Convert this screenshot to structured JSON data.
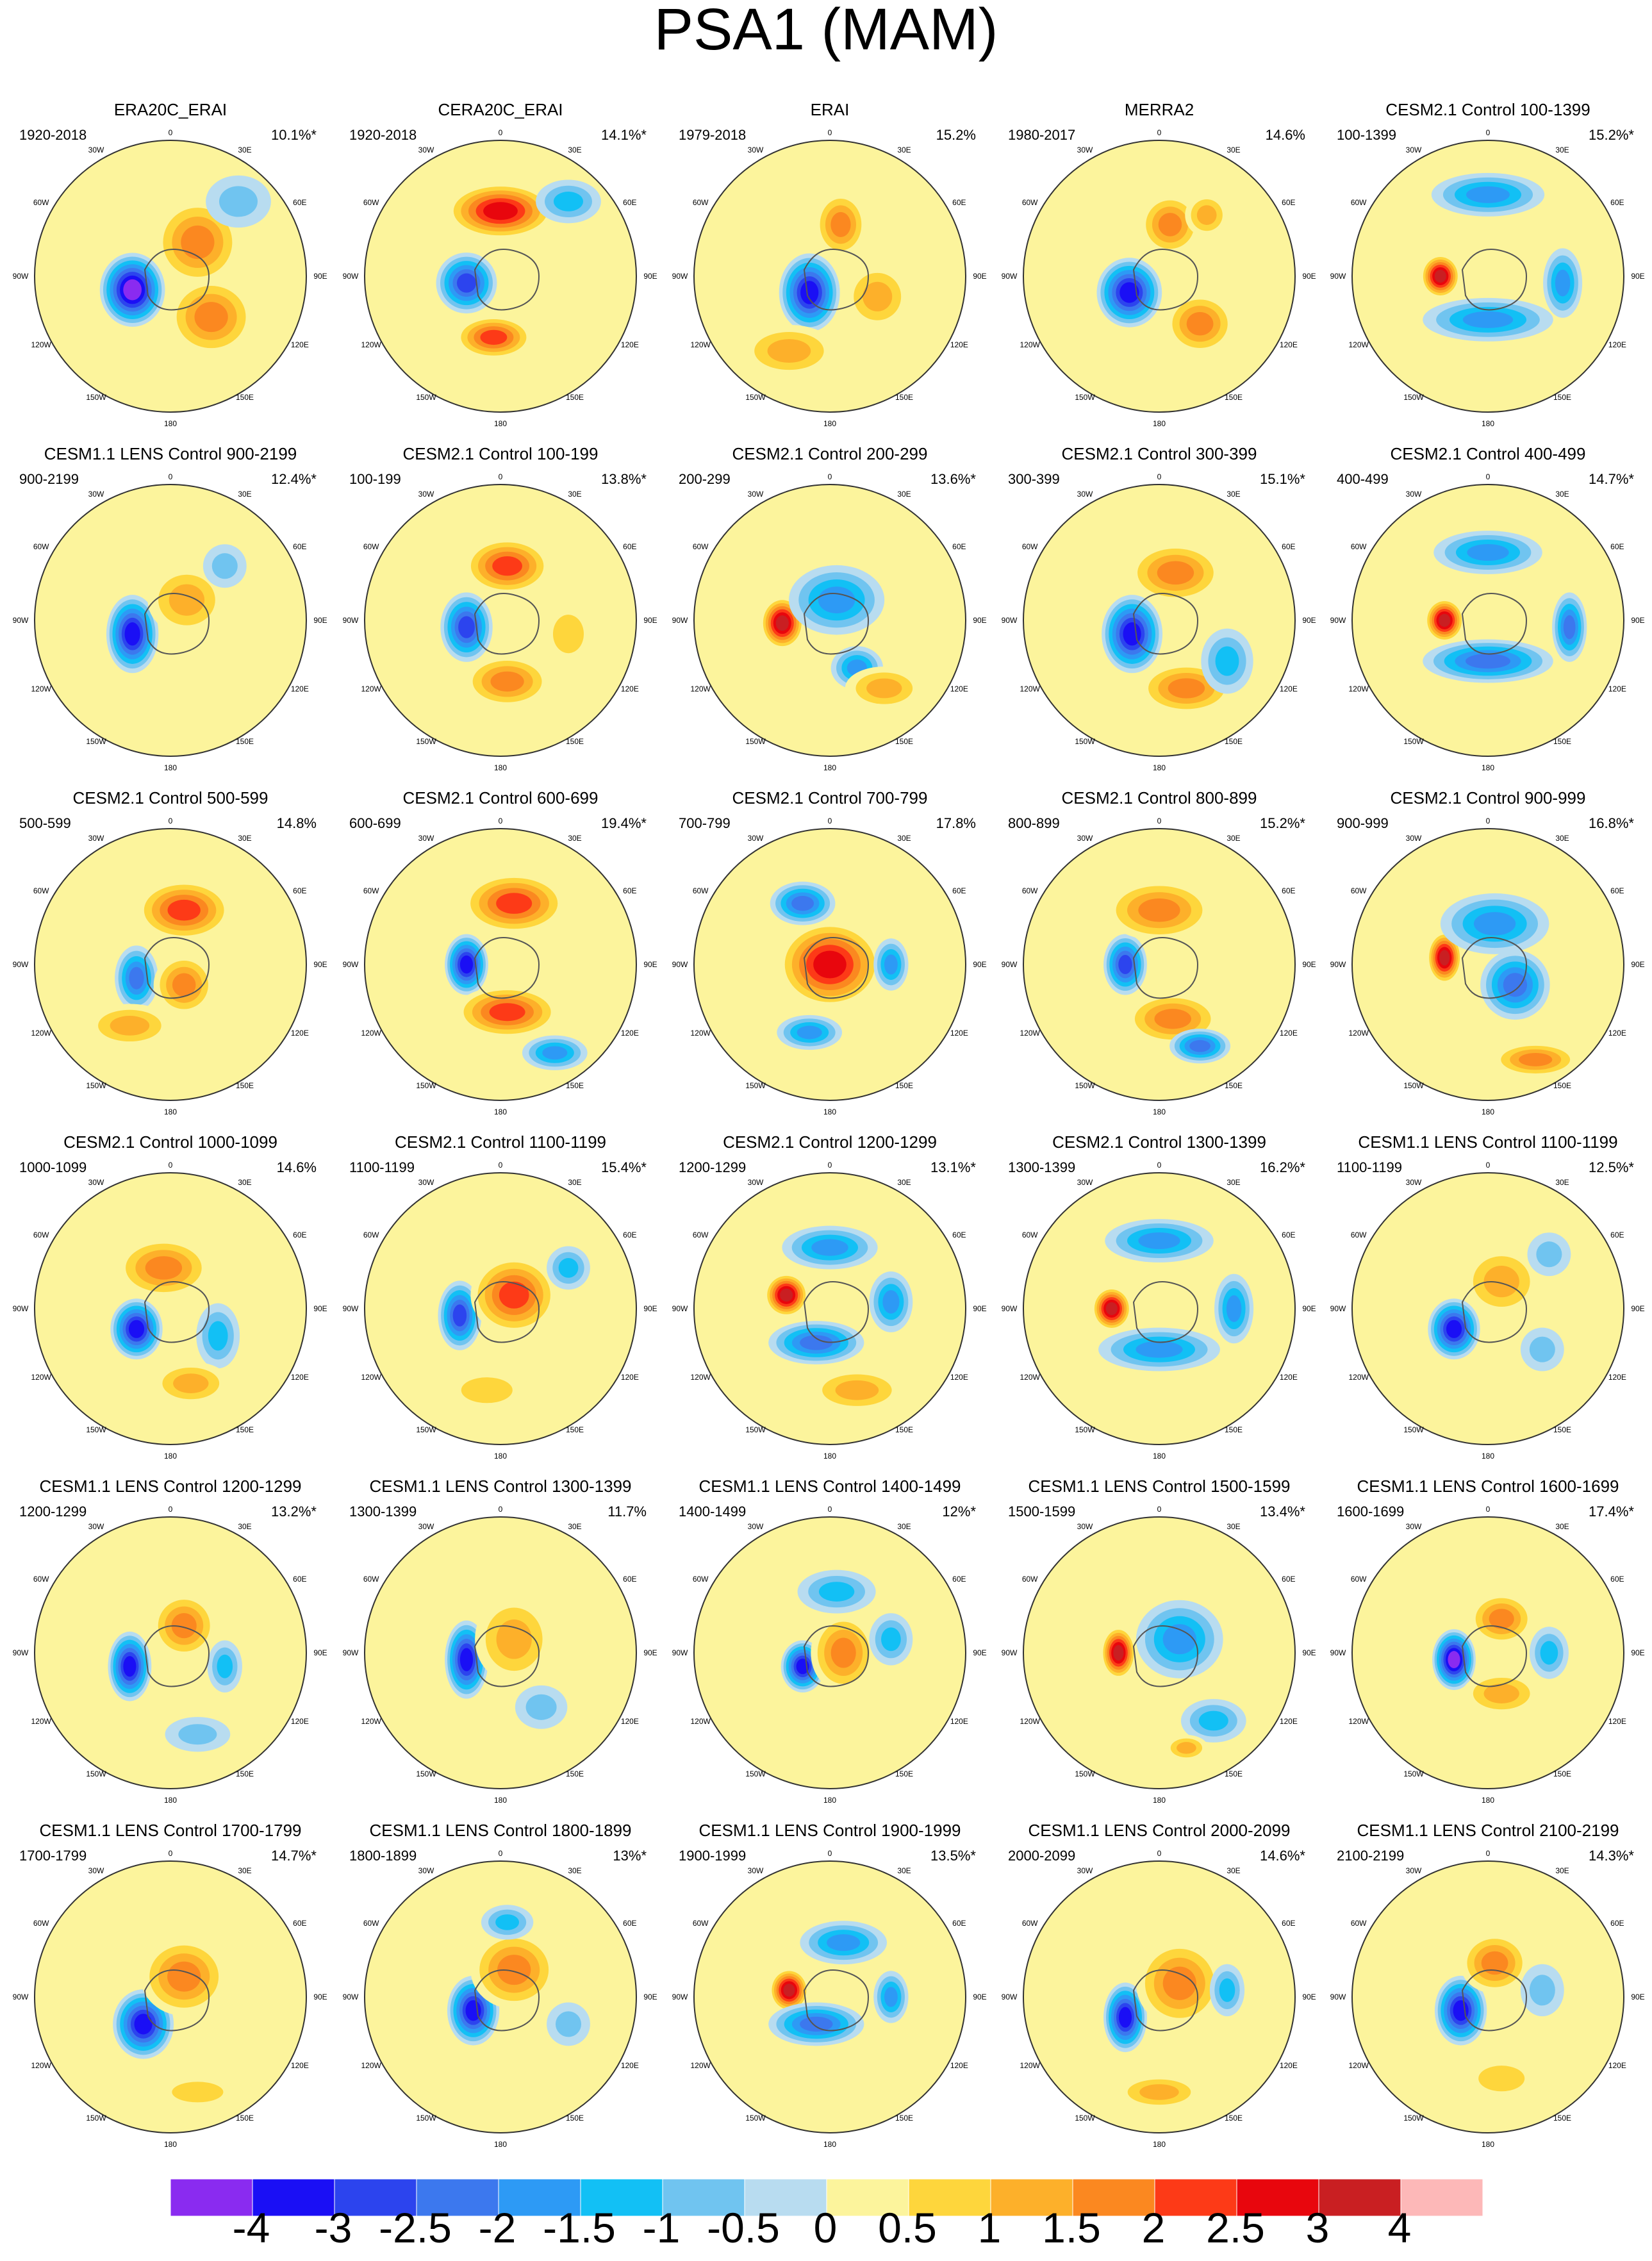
{
  "title": "PSA1 (MAM)",
  "map_labels": {
    "top": "0",
    "tr1": "30E",
    "tr2": "60E",
    "right": "90E",
    "br1": "120E",
    "br2": "150E",
    "bottom": "180",
    "bl2": "150W",
    "bl1": "120W",
    "left": "90W",
    "tl2": "60W",
    "tl1": "30W"
  },
  "palette": [
    "#8a2bf0",
    "#1a0ff5",
    "#2c44ee",
    "#3c78ee",
    "#2d9af5",
    "#12c0f5",
    "#70c4f0",
    "#b8dcf0",
    "#fcf49c",
    "#fed63c",
    "#fdb02a",
    "#fb8820",
    "#fd3a17",
    "#e8060d",
    "#c91f22",
    "#fdb8b8"
  ],
  "colorbar": {
    "labels": [
      "-4",
      "-3",
      "-2.5",
      "-2",
      "-1.5",
      "-1",
      "-0.5",
      "0",
      "0.5",
      "1",
      "1.5",
      "2",
      "2.5",
      "3",
      "4"
    ]
  },
  "panels": [
    {
      "title": "ERA20C_ERAI",
      "period": "1920-2018",
      "variance": "10.1%*",
      "features": [
        [
          -0.28,
          0.1,
          0.15,
          0.17,
          -4
        ],
        [
          0.2,
          -0.25,
          0.2,
          0.2,
          1.5
        ],
        [
          0.3,
          0.3,
          0.2,
          0.18,
          1.5
        ],
        [
          0.5,
          -0.55,
          0.15,
          0.12,
          -0.5
        ]
      ]
    },
    {
      "title": "CERA20C_ERAI",
      "period": "1920-2018",
      "variance": "14.1%*",
      "features": [
        [
          -0.25,
          0.05,
          0.14,
          0.14,
          -2.5
        ],
        [
          0.0,
          -0.48,
          0.25,
          0.13,
          2.5
        ],
        [
          -0.05,
          0.45,
          0.18,
          0.1,
          2
        ],
        [
          0.5,
          -0.55,
          0.15,
          0.1,
          -1
        ]
      ]
    },
    {
      "title": "ERAI",
      "period": "1979-2018",
      "variance": "15.2%",
      "features": [
        [
          -0.15,
          0.12,
          0.14,
          0.18,
          -3
        ],
        [
          0.08,
          -0.38,
          0.12,
          0.15,
          1.5
        ],
        [
          0.35,
          0.15,
          0.15,
          0.15,
          1
        ],
        [
          -0.3,
          0.55,
          0.22,
          0.12,
          1
        ]
      ]
    },
    {
      "title": "MERRA2",
      "period": "1980-2017",
      "variance": "14.6%",
      "features": [
        [
          -0.22,
          0.12,
          0.15,
          0.16,
          -3.5
        ],
        [
          0.08,
          -0.38,
          0.14,
          0.14,
          1.5
        ],
        [
          0.3,
          0.35,
          0.16,
          0.14,
          1.5
        ],
        [
          0.35,
          -0.45,
          0.1,
          0.1,
          1
        ]
      ]
    },
    {
      "title": "CESM2.1 Control 100-1399",
      "period": "100-1399",
      "variance": "15.2%*",
      "features": [
        [
          -0.35,
          0.0,
          0.09,
          0.1,
          3
        ],
        [
          0.0,
          -0.6,
          0.26,
          0.1,
          -1.5
        ],
        [
          0.0,
          0.32,
          0.3,
          0.1,
          -1.5
        ],
        [
          0.55,
          0.05,
          0.09,
          0.16,
          -1.5
        ]
      ]
    },
    {
      "title": "CESM1.1 LENS Control 900-2199",
      "period": "900-2199",
      "variance": "12.4%*",
      "features": [
        [
          -0.28,
          0.1,
          0.12,
          0.18,
          -3
        ],
        [
          0.12,
          -0.15,
          0.18,
          0.16,
          1
        ],
        [
          0.4,
          -0.4,
          0.1,
          0.1,
          -0.5
        ]
      ]
    },
    {
      "title": "CESM2.1 Control 100-199",
      "period": "100-199",
      "variance": "13.8%*",
      "features": [
        [
          -0.25,
          0.05,
          0.12,
          0.16,
          -2.5
        ],
        [
          0.05,
          -0.4,
          0.2,
          0.13,
          2
        ],
        [
          0.05,
          0.45,
          0.2,
          0.12,
          1.5
        ],
        [
          0.5,
          0.1,
          0.12,
          0.15,
          0.5
        ]
      ]
    },
    {
      "title": "CESM2.1 Control 200-299",
      "period": "200-299",
      "variance": "13.6%*",
      "features": [
        [
          -0.35,
          0.02,
          0.1,
          0.12,
          3.5
        ],
        [
          0.05,
          -0.15,
          0.22,
          0.16,
          -1.5
        ],
        [
          0.2,
          0.35,
          0.12,
          0.1,
          -1.5
        ],
        [
          0.4,
          0.5,
          0.18,
          0.1,
          1
        ]
      ]
    },
    {
      "title": "CESM2.1 Control 300-399",
      "period": "300-399",
      "variance": "15.1%*",
      "features": [
        [
          -0.2,
          0.1,
          0.14,
          0.18,
          -3.5
        ],
        [
          0.12,
          -0.35,
          0.22,
          0.14,
          1.5
        ],
        [
          0.2,
          0.5,
          0.22,
          0.12,
          1.5
        ],
        [
          0.5,
          0.3,
          0.12,
          0.15,
          -1
        ]
      ]
    },
    {
      "title": "CESM2.1 Control 400-499",
      "period": "400-499",
      "variance": "14.7%*",
      "features": [
        [
          -0.32,
          0.0,
          0.09,
          0.1,
          3
        ],
        [
          0.0,
          -0.5,
          0.25,
          0.1,
          -1.5
        ],
        [
          0.0,
          0.3,
          0.3,
          0.1,
          -2
        ],
        [
          0.6,
          0.05,
          0.08,
          0.16,
          -2
        ]
      ]
    },
    {
      "title": "CESM2.1 Control 500-599",
      "period": "500-599",
      "variance": "14.8%",
      "features": [
        [
          -0.25,
          0.1,
          0.1,
          0.15,
          -2
        ],
        [
          0.1,
          -0.4,
          0.22,
          0.14,
          2
        ],
        [
          -0.3,
          0.45,
          0.2,
          0.1,
          1
        ],
        [
          0.1,
          0.15,
          0.14,
          0.14,
          1.5
        ]
      ]
    },
    {
      "title": "CESM2.1 Control 600-699",
      "period": "600-699",
      "variance": "19.4%*",
      "features": [
        [
          -0.25,
          0.0,
          0.1,
          0.14,
          -3.5
        ],
        [
          0.1,
          -0.45,
          0.24,
          0.14,
          2
        ],
        [
          0.05,
          0.35,
          0.24,
          0.12,
          2
        ],
        [
          0.4,
          0.65,
          0.15,
          0.08,
          -1.5
        ]
      ]
    },
    {
      "title": "CESM2.1 Control 700-799",
      "period": "700-799",
      "variance": "17.8%",
      "features": [
        [
          0.0,
          0.0,
          0.24,
          0.2,
          2.5
        ],
        [
          -0.2,
          -0.45,
          0.15,
          0.1,
          -2
        ],
        [
          0.45,
          0.0,
          0.08,
          0.12,
          -1.5
        ],
        [
          -0.15,
          0.5,
          0.15,
          0.08,
          -1.5
        ]
      ]
    },
    {
      "title": "CESM2.1 Control 800-899",
      "period": "800-899",
      "variance": "15.2%*",
      "features": [
        [
          -0.25,
          0.0,
          0.1,
          0.14,
          -2.5
        ],
        [
          0.0,
          -0.4,
          0.25,
          0.14,
          1.5
        ],
        [
          0.1,
          0.4,
          0.22,
          0.12,
          1.5
        ],
        [
          0.3,
          0.6,
          0.14,
          0.08,
          -2
        ]
      ]
    },
    {
      "title": "CESM2.1 Control 900-999",
      "period": "900-999",
      "variance": "16.8%*",
      "features": [
        [
          -0.32,
          -0.05,
          0.08,
          0.12,
          3.5
        ],
        [
          0.05,
          -0.3,
          0.25,
          0.14,
          -1.5
        ],
        [
          0.2,
          0.15,
          0.16,
          0.16,
          -2
        ],
        [
          0.35,
          0.7,
          0.2,
          0.08,
          1.5
        ]
      ]
    },
    {
      "title": "CESM2.1 Control 1000-1099",
      "period": "1000-1099",
      "variance": "14.6%",
      "features": [
        [
          -0.25,
          0.15,
          0.12,
          0.14,
          -3.5
        ],
        [
          -0.05,
          -0.3,
          0.22,
          0.14,
          1.5
        ],
        [
          0.35,
          0.2,
          0.1,
          0.15,
          -1
        ],
        [
          0.15,
          0.55,
          0.18,
          0.1,
          1
        ]
      ]
    },
    {
      "title": "CESM2.1 Control 1100-1199",
      "period": "1100-1199",
      "variance": "15.4%*",
      "features": [
        [
          -0.3,
          0.05,
          0.1,
          0.16,
          -2.5
        ],
        [
          0.1,
          -0.1,
          0.2,
          0.18,
          2
        ],
        [
          0.5,
          -0.3,
          0.1,
          0.1,
          -1
        ],
        [
          -0.1,
          0.6,
          0.2,
          0.1,
          0.5
        ]
      ]
    },
    {
      "title": "CESM2.1 Control 1200-1299",
      "period": "1200-1299",
      "variance": "13.1%*",
      "features": [
        [
          -0.32,
          -0.1,
          0.1,
          0.1,
          3
        ],
        [
          0.0,
          -0.45,
          0.22,
          0.1,
          -1.5
        ],
        [
          -0.1,
          0.25,
          0.22,
          0.1,
          -2
        ],
        [
          0.45,
          -0.05,
          0.1,
          0.14,
          -1.5
        ],
        [
          0.2,
          0.6,
          0.22,
          0.1,
          1
        ]
      ]
    },
    {
      "title": "CESM2.1 Control 1300-1399",
      "period": "1300-1399",
      "variance": "16.2%*",
      "features": [
        [
          -0.35,
          0.0,
          0.09,
          0.1,
          3
        ],
        [
          0.0,
          -0.5,
          0.25,
          0.1,
          -1.5
        ],
        [
          0.0,
          0.3,
          0.28,
          0.1,
          -1.5
        ],
        [
          0.55,
          0.0,
          0.09,
          0.16,
          -1.5
        ]
      ]
    },
    {
      "title": "CESM1.1 LENS Control 1100-1199",
      "period": "1100-1199",
      "variance": "12.5%*",
      "features": [
        [
          -0.25,
          0.15,
          0.12,
          0.14,
          -3
        ],
        [
          0.1,
          -0.2,
          0.18,
          0.16,
          1
        ],
        [
          0.4,
          0.3,
          0.1,
          0.1,
          -0.5
        ],
        [
          0.45,
          -0.4,
          0.1,
          0.1,
          -0.5
        ]
      ]
    },
    {
      "title": "CESM1.1 LENS Control 1200-1299",
      "period": "1200-1299",
      "variance": "13.2%*",
      "features": [
        [
          -0.3,
          0.1,
          0.1,
          0.16,
          -3
        ],
        [
          0.1,
          -0.2,
          0.15,
          0.15,
          1.5
        ],
        [
          0.4,
          0.1,
          0.08,
          0.12,
          -1
        ],
        [
          0.2,
          0.6,
          0.15,
          0.08,
          -0.5
        ]
      ]
    },
    {
      "title": "CESM1.1 LENS Control 1300-1399",
      "period": "1300-1399",
      "variance": "11.7%",
      "features": [
        [
          -0.25,
          0.05,
          0.1,
          0.18,
          -3
        ],
        [
          0.1,
          -0.1,
          0.18,
          0.2,
          1
        ],
        [
          0.3,
          0.4,
          0.12,
          0.1,
          -0.5
        ]
      ]
    },
    {
      "title": "CESM1.1 LENS Control 1400-1499",
      "period": "1400-1499",
      "variance": "12%*",
      "features": [
        [
          -0.2,
          0.1,
          0.1,
          0.12,
          -3
        ],
        [
          0.1,
          0.0,
          0.15,
          0.18,
          1.5
        ],
        [
          0.05,
          -0.45,
          0.18,
          0.1,
          -1
        ],
        [
          0.45,
          -0.1,
          0.1,
          0.12,
          -1
        ]
      ]
    },
    {
      "title": "CESM1.1 LENS Control 1500-1599",
      "period": "1500-1599",
      "variance": "13.4%*",
      "features": [
        [
          -0.3,
          0.0,
          0.08,
          0.12,
          3.5
        ],
        [
          0.15,
          -0.1,
          0.2,
          0.18,
          -1.5
        ],
        [
          0.4,
          0.5,
          0.15,
          0.1,
          -1
        ],
        [
          0.2,
          0.7,
          0.1,
          0.06,
          1
        ]
      ]
    },
    {
      "title": "CESM1.1 LENS Control 1600-1699",
      "period": "1600-1699",
      "variance": "17.4%*",
      "features": [
        [
          -0.25,
          0.05,
          0.1,
          0.14,
          -4
        ],
        [
          0.1,
          -0.25,
          0.15,
          0.12,
          1.5
        ],
        [
          0.1,
          0.3,
          0.18,
          0.1,
          1
        ],
        [
          0.45,
          0.0,
          0.09,
          0.12,
          -1
        ]
      ]
    },
    {
      "title": "CESM1.1 LENS Control 1700-1799",
      "period": "1700-1799",
      "variance": "14.7%*",
      "features": [
        [
          -0.2,
          0.2,
          0.14,
          0.16,
          -3.5
        ],
        [
          0.1,
          -0.15,
          0.2,
          0.18,
          1.5
        ],
        [
          0.2,
          0.7,
          0.2,
          0.08,
          0.5
        ]
      ]
    },
    {
      "title": "CESM1.1 LENS Control 1800-1899",
      "period": "1800-1899",
      "variance": "13%*",
      "features": [
        [
          -0.2,
          0.1,
          0.12,
          0.16,
          -3
        ],
        [
          0.1,
          -0.2,
          0.2,
          0.18,
          1.5
        ],
        [
          0.05,
          -0.55,
          0.12,
          0.08,
          -1
        ],
        [
          0.5,
          0.2,
          0.1,
          0.1,
          -0.5
        ]
      ]
    },
    {
      "title": "CESM1.1 LENS Control 1900-1999",
      "period": "1900-1999",
      "variance": "13.5%*",
      "features": [
        [
          -0.3,
          -0.05,
          0.09,
          0.1,
          3
        ],
        [
          -0.1,
          0.2,
          0.22,
          0.1,
          -2
        ],
        [
          0.1,
          -0.4,
          0.2,
          0.1,
          -1.5
        ],
        [
          0.45,
          0.0,
          0.08,
          0.12,
          -1.5
        ]
      ]
    },
    {
      "title": "CESM1.1 LENS Control 2000-2099",
      "period": "2000-2099",
      "variance": "14.6%*",
      "features": [
        [
          -0.25,
          0.15,
          0.1,
          0.16,
          -3.5
        ],
        [
          0.15,
          -0.1,
          0.2,
          0.2,
          1.5
        ],
        [
          0.5,
          -0.05,
          0.08,
          0.12,
          -1
        ],
        [
          0.0,
          0.7,
          0.2,
          0.08,
          1
        ]
      ]
    },
    {
      "title": "CESM1.1 LENS Control 2100-2199",
      "period": "2100-2199",
      "variance": "14.3%*",
      "features": [
        [
          -0.2,
          0.1,
          0.12,
          0.16,
          -3.5
        ],
        [
          0.05,
          -0.25,
          0.16,
          0.14,
          1.5
        ],
        [
          0.4,
          -0.05,
          0.1,
          0.12,
          -0.5
        ],
        [
          0.1,
          0.6,
          0.18,
          0.1,
          0.5
        ]
      ]
    }
  ]
}
